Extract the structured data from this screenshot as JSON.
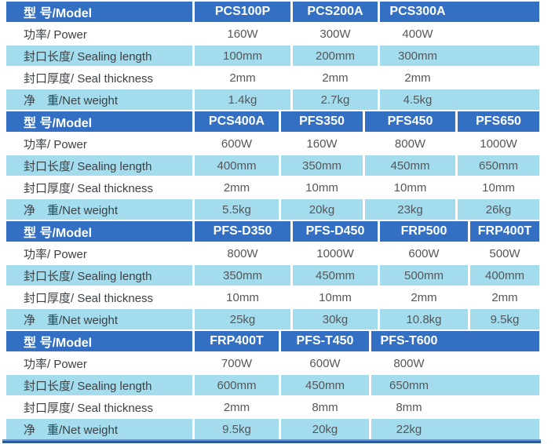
{
  "colors": {
    "header_bg": "#3370c3",
    "band_bg": "#a3dcec",
    "header_text": "#ffffff",
    "label_text": "#3c4146",
    "value_text": "#54575b",
    "footer_top": "#6d97d2",
    "footer_bottom": "#2a5aa0"
  },
  "table": {
    "model_header_label": "型 号/Model",
    "row_labels": [
      "功率/ Power",
      "封口长度/ Sealing length",
      "封口厚度/ Seal thickness",
      "净　重/Net weight"
    ],
    "sections": [
      {
        "models": [
          "PCS100P",
          "PCS200A",
          "PCS300A"
        ],
        "rows": [
          [
            "160W",
            "300W",
            "400W"
          ],
          [
            "100mm",
            "200mm",
            "300mm"
          ],
          [
            "2mm",
            "2mm",
            "2mm"
          ],
          [
            "1.4kg",
            "2.7kg",
            "4.5kg"
          ]
        ]
      },
      {
        "models": [
          "PCS400A",
          "PFS350",
          "PFS450",
          "PFS650"
        ],
        "rows": [
          [
            "600W",
            "160W",
            "800W",
            "1000W"
          ],
          [
            "400mm",
            "350mm",
            "450mm",
            "650mm"
          ],
          [
            "2mm",
            "10mm",
            "10mm",
            "10mm"
          ],
          [
            "5.5kg",
            "20kg",
            "23kg",
            "26kg"
          ]
        ]
      },
      {
        "models": [
          "PFS-D350",
          "PFS-D450",
          "FRP500",
          "FRP400T"
        ],
        "rows": [
          [
            "800W",
            "1000W",
            "600W",
            "500W"
          ],
          [
            "350mm",
            "450mm",
            "500mm",
            "400mm"
          ],
          [
            "10mm",
            "10mm",
            "2mm",
            "2mm"
          ],
          [
            "25kg",
            "30kg",
            "10.8kg",
            "9.5kg"
          ]
        ]
      },
      {
        "models": [
          "FRP400T",
          "PFS-T450",
          "PFS-T600"
        ],
        "rows": [
          [
            "700W",
            "600W",
            "800W"
          ],
          [
            "600mm",
            "450mm",
            "650mm"
          ],
          [
            "2mm",
            "8mm",
            "8mm"
          ],
          [
            "9.5kg",
            "20kg",
            "22kg"
          ]
        ]
      }
    ]
  }
}
